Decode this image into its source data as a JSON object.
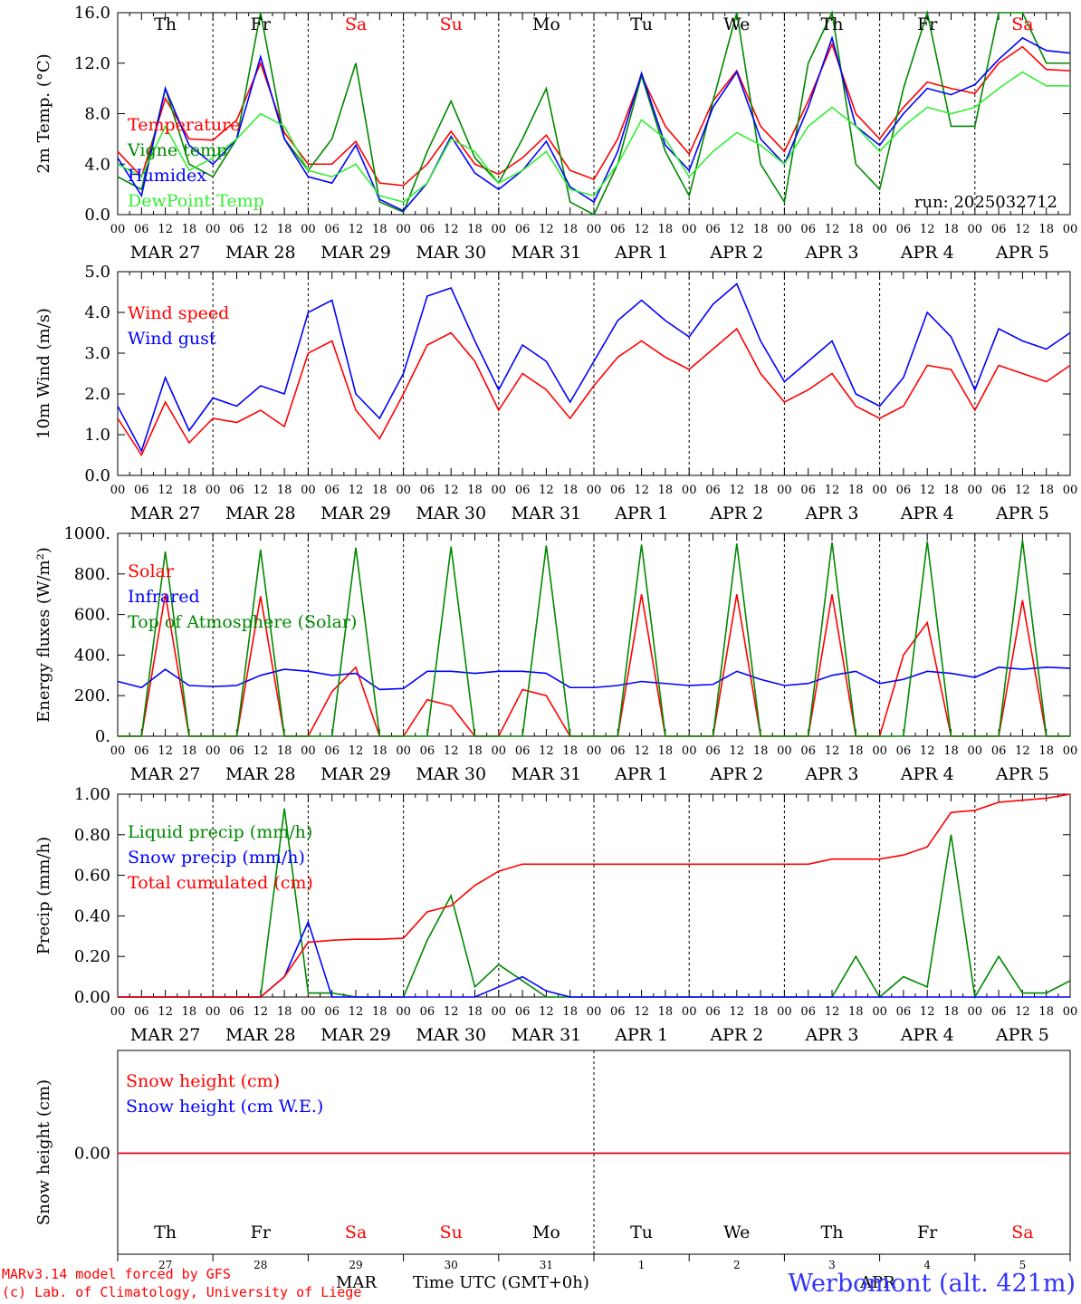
{
  "colors": {
    "red": "#ff0000",
    "green": "#008800",
    "blue": "#0000ff",
    "lightgreen": "#33ee33",
    "weekend": "#ff0000",
    "grid": "#000000"
  },
  "days": [
    "Th",
    "Fr",
    "Sa",
    "Su",
    "Mo",
    "Tu",
    "We",
    "Th",
    "Fr",
    "Sa"
  ],
  "weekend_days": [
    "Sa",
    "Su"
  ],
  "date_labels": [
    "MAR 27",
    "MAR 28",
    "MAR 29",
    "MAR 30",
    "MAR 31",
    "APR  1",
    "APR  2",
    "APR  3",
    "APR  4",
    "APR  5"
  ],
  "hour_ticks": [
    "00",
    "06",
    "12",
    "18"
  ],
  "bottom_day_numbers": [
    "27",
    "28",
    "29",
    "30",
    "31",
    "1",
    "2",
    "3",
    "4",
    "5"
  ],
  "footer": {
    "month_left": "MAR",
    "time_label": "Time UTC (GMT+0h)",
    "month_right": "APR",
    "credit1": "MARv3.14 model forced by GFS",
    "credit2": "(c) Lab. of Climatology, University of Liege",
    "station": "Werbomont (alt. 421m)"
  },
  "chart_data": [
    {
      "type": "line",
      "ylabel": "2m Temp. (°C)",
      "ylim": [
        0,
        16
      ],
      "yticks": [
        "0.0",
        "4.0",
        "8.0",
        "12.0",
        "16.0"
      ],
      "annotation": "run: 2025032712",
      "x_hours": [
        0,
        6,
        12,
        18,
        24,
        30,
        36,
        42,
        48,
        54,
        60,
        66,
        72,
        78,
        84,
        90,
        96,
        102,
        108,
        114,
        120,
        126,
        132,
        138,
        144,
        150,
        156,
        162,
        168,
        174,
        180,
        186,
        192,
        198,
        204,
        210,
        216,
        222,
        228,
        234,
        240
      ],
      "series": [
        {
          "name": "Temperature",
          "color": "red",
          "values": [
            5.0,
            3.0,
            9.2,
            6.0,
            5.9,
            7.5,
            12.0,
            6.5,
            4.0,
            4.0,
            5.8,
            2.5,
            2.3,
            4.0,
            6.6,
            4.0,
            3.2,
            4.5,
            6.3,
            3.5,
            2.8,
            6.0,
            11.0,
            7.0,
            4.8,
            9.0,
            11.4,
            7.0,
            5.0,
            9.0,
            13.5,
            8.0,
            6.0,
            8.5,
            10.5,
            10.0,
            9.6,
            12.0,
            13.3,
            11.5,
            11.4
          ]
        },
        {
          "name": "Vigne temp",
          "color": "green",
          "values": [
            3.0,
            2.0,
            10.0,
            4.0,
            3.0,
            6.0,
            16.0,
            6.0,
            3.5,
            6.0,
            12.0,
            1.0,
            0.2,
            5.0,
            9.0,
            4.5,
            2.5,
            6.0,
            10.0,
            1.0,
            0.0,
            4.0,
            11.0,
            5.0,
            1.5,
            9.0,
            16.0,
            4.0,
            1.0,
            12.0,
            17.0,
            4.0,
            2.0,
            10.0,
            16.0,
            7.0,
            7.0,
            16.0,
            17.0,
            12.0,
            12.0
          ]
        },
        {
          "name": "Humidex",
          "color": "blue",
          "values": [
            4.5,
            1.5,
            10.0,
            5.5,
            4.0,
            6.0,
            12.5,
            6.0,
            3.0,
            2.5,
            5.5,
            1.2,
            0.3,
            2.5,
            6.2,
            3.3,
            2.0,
            3.5,
            5.8,
            2.2,
            1.0,
            5.0,
            11.2,
            5.5,
            3.5,
            8.5,
            11.3,
            6.0,
            4.0,
            8.5,
            14.0,
            7.0,
            5.5,
            8.0,
            10.0,
            9.5,
            10.3,
            12.3,
            14.0,
            13.0,
            12.8
          ]
        },
        {
          "name": "DewPoint Temp",
          "color": "lightgreen",
          "values": [
            4.0,
            3.0,
            7.0,
            3.5,
            4.5,
            6.0,
            8.0,
            7.0,
            3.5,
            3.0,
            4.0,
            1.5,
            1.0,
            2.5,
            6.0,
            5.0,
            2.5,
            3.5,
            5.0,
            2.0,
            1.5,
            4.0,
            7.5,
            6.0,
            3.0,
            5.0,
            6.5,
            5.5,
            4.0,
            7.0,
            8.5,
            7.0,
            5.0,
            7.0,
            8.5,
            8.0,
            8.5,
            10.0,
            11.3,
            10.2,
            10.2
          ]
        }
      ]
    },
    {
      "type": "line",
      "ylabel": "10m Wind (m/s)",
      "ylim": [
        0,
        5
      ],
      "yticks": [
        "0.0",
        "1.0",
        "2.0",
        "3.0",
        "4.0",
        "5.0"
      ],
      "x_hours": [
        0,
        6,
        12,
        18,
        24,
        30,
        36,
        42,
        48,
        54,
        60,
        66,
        72,
        78,
        84,
        90,
        96,
        102,
        108,
        114,
        120,
        126,
        132,
        138,
        144,
        150,
        156,
        162,
        168,
        174,
        180,
        186,
        192,
        198,
        204,
        210,
        216,
        222,
        228,
        234,
        240
      ],
      "series": [
        {
          "name": "Wind speed",
          "color": "red",
          "values": [
            1.4,
            0.5,
            1.8,
            0.8,
            1.4,
            1.3,
            1.6,
            1.2,
            3.0,
            3.3,
            1.6,
            0.9,
            2.0,
            3.2,
            3.5,
            2.8,
            1.6,
            2.5,
            2.1,
            1.4,
            2.2,
            2.9,
            3.3,
            2.9,
            2.6,
            3.1,
            3.6,
            2.5,
            1.8,
            2.1,
            2.5,
            1.7,
            1.4,
            1.7,
            2.7,
            2.6,
            1.6,
            2.7,
            2.5,
            2.3,
            2.7
          ]
        },
        {
          "name": "Wind gust",
          "color": "blue",
          "values": [
            1.7,
            0.6,
            2.4,
            1.1,
            1.9,
            1.7,
            2.2,
            2.0,
            4.0,
            4.3,
            2.0,
            1.4,
            2.5,
            4.4,
            4.6,
            3.3,
            2.1,
            3.2,
            2.8,
            1.8,
            2.8,
            3.8,
            4.3,
            3.8,
            3.4,
            4.2,
            4.7,
            3.3,
            2.3,
            2.8,
            3.3,
            2.0,
            1.7,
            2.4,
            4.0,
            3.4,
            2.1,
            3.6,
            3.3,
            3.1,
            3.5
          ]
        }
      ]
    },
    {
      "type": "line",
      "ylabel": "Energy fluxes (W/m²)",
      "ylim": [
        0,
        1000
      ],
      "yticks": [
        "0.",
        "200.",
        "400.",
        "600.",
        "800.",
        "1000."
      ],
      "x_hours": [
        0,
        6,
        12,
        18,
        24,
        30,
        36,
        42,
        48,
        54,
        60,
        66,
        72,
        78,
        84,
        90,
        96,
        102,
        108,
        114,
        120,
        126,
        132,
        138,
        144,
        150,
        156,
        162,
        168,
        174,
        180,
        186,
        192,
        198,
        204,
        210,
        216,
        222,
        228,
        234,
        240
      ],
      "series": [
        {
          "name": "Solar",
          "color": "red",
          "values": [
            0,
            0,
            700,
            0,
            0,
            0,
            690,
            0,
            0,
            220,
            340,
            0,
            0,
            180,
            150,
            0,
            0,
            230,
            200,
            0,
            0,
            0,
            700,
            0,
            0,
            0,
            700,
            0,
            0,
            0,
            700,
            0,
            0,
            400,
            560,
            0,
            0,
            0,
            670,
            0,
            0
          ]
        },
        {
          "name": "Infrared",
          "color": "blue",
          "values": [
            270,
            240,
            330,
            250,
            245,
            250,
            300,
            330,
            320,
            300,
            310,
            230,
            235,
            320,
            320,
            310,
            320,
            320,
            310,
            240,
            240,
            250,
            270,
            260,
            250,
            255,
            320,
            280,
            250,
            260,
            300,
            320,
            260,
            280,
            320,
            310,
            290,
            340,
            330,
            340,
            335
          ]
        },
        {
          "name": "Top of Atmosphere (Solar)",
          "color": "green",
          "values": [
            0,
            0,
            910,
            0,
            0,
            0,
            920,
            0,
            0,
            0,
            930,
            0,
            0,
            0,
            935,
            0,
            0,
            0,
            940,
            0,
            0,
            0,
            945,
            0,
            0,
            0,
            950,
            0,
            0,
            0,
            955,
            0,
            0,
            0,
            960,
            0,
            0,
            0,
            965,
            0,
            0
          ]
        }
      ]
    },
    {
      "type": "line",
      "ylabel": "Precip (mm/h)",
      "ylim": [
        0,
        1
      ],
      "yticks": [
        "0.00",
        "0.20",
        "0.40",
        "0.60",
        "0.80",
        "1.00"
      ],
      "x_hours": [
        0,
        6,
        12,
        18,
        24,
        30,
        36,
        42,
        48,
        54,
        60,
        66,
        72,
        78,
        84,
        90,
        96,
        102,
        108,
        114,
        120,
        126,
        132,
        138,
        144,
        150,
        156,
        162,
        168,
        174,
        180,
        186,
        192,
        198,
        204,
        210,
        216,
        222,
        228,
        234,
        240
      ],
      "series": [
        {
          "name": "Liquid precip (mm/h)",
          "color": "green",
          "values": [
            0,
            0,
            0,
            0,
            0,
            0,
            0,
            0.93,
            0.02,
            0.02,
            0,
            0,
            0,
            0.28,
            0.5,
            0.05,
            0.16,
            0.08,
            0,
            0,
            0,
            0,
            0,
            0,
            0,
            0,
            0,
            0,
            0,
            0,
            0,
            0.2,
            0,
            0.1,
            0.05,
            0.8,
            0,
            0.2,
            0.02,
            0.02,
            0.08
          ]
        },
        {
          "name": "Snow precip (mm/h)",
          "color": "blue",
          "values": [
            0,
            0,
            0,
            0,
            0,
            0,
            0,
            0.1,
            0.37,
            0,
            0,
            0,
            0,
            0,
            0,
            0,
            0.05,
            0.1,
            0.03,
            0,
            0,
            0,
            0,
            0,
            0,
            0,
            0,
            0,
            0,
            0,
            0,
            0,
            0,
            0,
            0,
            0,
            0,
            0,
            0,
            0,
            0
          ]
        },
        {
          "name": "Total cumulated (cm)",
          "color": "red",
          "values": [
            0,
            0,
            0,
            0,
            0,
            0,
            0,
            0.1,
            0.27,
            0.28,
            0.285,
            0.285,
            0.29,
            0.42,
            0.45,
            0.55,
            0.62,
            0.655,
            0.655,
            0.655,
            0.655,
            0.655,
            0.655,
            0.655,
            0.655,
            0.655,
            0.655,
            0.655,
            0.655,
            0.655,
            0.68,
            0.68,
            0.68,
            0.7,
            0.74,
            0.91,
            0.92,
            0.96,
            0.97,
            0.98,
            1.0
          ]
        }
      ]
    },
    {
      "type": "line",
      "ylabel": "Snow height (cm)",
      "yticks": [
        "0.00"
      ],
      "series": [
        {
          "name": "Snow height (cm)",
          "color": "red",
          "values": [
            0,
            0
          ]
        },
        {
          "name": "Snow height (cm W.E.)",
          "color": "blue",
          "values": [
            0,
            0
          ]
        }
      ]
    }
  ]
}
